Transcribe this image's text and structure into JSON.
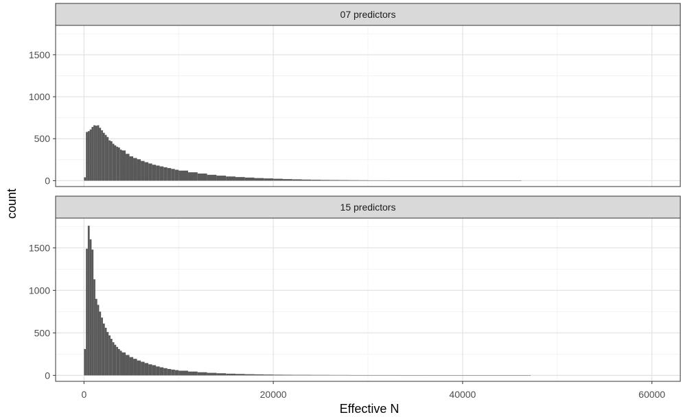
{
  "chart_data": {
    "type": "bar",
    "subtype": "histogram-facet",
    "xlabel": "Effective N",
    "ylabel": "count",
    "x_ticks": [
      0,
      20000,
      40000,
      60000
    ],
    "x_tick_labels": [
      "0",
      "20000",
      "40000",
      "60000"
    ],
    "xlim": [
      -3000,
      63000
    ],
    "grid": true,
    "panels": [
      {
        "strip_label": "07 predictors",
        "ylim": [
          -70,
          1850
        ],
        "y_ticks": [
          0,
          500,
          1000,
          1500
        ],
        "y_tick_labels": [
          "0",
          "500",
          "1000",
          "1500"
        ],
        "bin_width": 200,
        "bins": [
          [
            0,
            40
          ],
          [
            200,
            580
          ],
          [
            400,
            590
          ],
          [
            600,
            610
          ],
          [
            800,
            640
          ],
          [
            1000,
            660
          ],
          [
            1200,
            655
          ],
          [
            1400,
            660
          ],
          [
            1600,
            630
          ],
          [
            1800,
            600
          ],
          [
            2000,
            570
          ],
          [
            2200,
            545
          ],
          [
            2400,
            520
          ],
          [
            2600,
            480
          ],
          [
            2800,
            470
          ],
          [
            3000,
            440
          ],
          [
            3200,
            420
          ],
          [
            3400,
            405
          ],
          [
            3600,
            395
          ],
          [
            3800,
            370
          ],
          [
            4000,
            360
          ],
          [
            4400,
            320
          ],
          [
            4800,
            290
          ],
          [
            5200,
            270
          ],
          [
            5600,
            255
          ],
          [
            6000,
            235
          ],
          [
            6400,
            220
          ],
          [
            6800,
            205
          ],
          [
            7200,
            190
          ],
          [
            7600,
            180
          ],
          [
            8000,
            170
          ],
          [
            8400,
            160
          ],
          [
            8800,
            150
          ],
          [
            9200,
            140
          ],
          [
            9600,
            130
          ],
          [
            10000,
            120
          ],
          [
            11000,
            100
          ],
          [
            12000,
            85
          ],
          [
            13000,
            70
          ],
          [
            14000,
            60
          ],
          [
            15000,
            50
          ],
          [
            16000,
            43
          ],
          [
            17000,
            37
          ],
          [
            18000,
            31
          ],
          [
            19000,
            27
          ],
          [
            20000,
            23
          ],
          [
            21000,
            19
          ],
          [
            22000,
            16
          ],
          [
            23000,
            13
          ],
          [
            24000,
            11
          ],
          [
            25000,
            9
          ],
          [
            26000,
            8
          ],
          [
            27000,
            7
          ],
          [
            28000,
            6
          ],
          [
            29000,
            5
          ],
          [
            30000,
            4
          ],
          [
            32000,
            3
          ],
          [
            34000,
            3
          ],
          [
            36000,
            2
          ],
          [
            38000,
            2
          ],
          [
            40000,
            2
          ],
          [
            42000,
            1
          ],
          [
            44000,
            1
          ],
          [
            46000,
            1
          ]
        ]
      },
      {
        "strip_label": "15 predictors",
        "ylim": [
          -70,
          1850
        ],
        "y_ticks": [
          0,
          500,
          1000,
          1500
        ],
        "y_tick_labels": [
          "0",
          "500",
          "1000",
          "1500"
        ],
        "bin_width": 200,
        "bins": [
          [
            0,
            310
          ],
          [
            200,
            1490
          ],
          [
            400,
            1760
          ],
          [
            600,
            1600
          ],
          [
            800,
            1480
          ],
          [
            1000,
            1130
          ],
          [
            1200,
            900
          ],
          [
            1400,
            830
          ],
          [
            1600,
            750
          ],
          [
            1800,
            680
          ],
          [
            2000,
            610
          ],
          [
            2200,
            560
          ],
          [
            2400,
            510
          ],
          [
            2600,
            470
          ],
          [
            2800,
            430
          ],
          [
            3000,
            390
          ],
          [
            3200,
            360
          ],
          [
            3400,
            335
          ],
          [
            3600,
            310
          ],
          [
            3800,
            290
          ],
          [
            4000,
            270
          ],
          [
            4400,
            240
          ],
          [
            4800,
            215
          ],
          [
            5200,
            195
          ],
          [
            5600,
            175
          ],
          [
            6000,
            160
          ],
          [
            6400,
            145
          ],
          [
            6800,
            130
          ],
          [
            7200,
            120
          ],
          [
            7600,
            105
          ],
          [
            8000,
            95
          ],
          [
            8400,
            85
          ],
          [
            8800,
            75
          ],
          [
            9200,
            68
          ],
          [
            9600,
            62
          ],
          [
            10000,
            55
          ],
          [
            11000,
            45
          ],
          [
            12000,
            37
          ],
          [
            13000,
            30
          ],
          [
            14000,
            25
          ],
          [
            15000,
            20
          ],
          [
            16000,
            17
          ],
          [
            17000,
            14
          ],
          [
            18000,
            12
          ],
          [
            19000,
            10
          ],
          [
            20000,
            8
          ],
          [
            21000,
            7
          ],
          [
            22000,
            6
          ],
          [
            24000,
            5
          ],
          [
            26000,
            4
          ],
          [
            28000,
            3
          ],
          [
            30000,
            3
          ],
          [
            33000,
            2
          ],
          [
            36000,
            2
          ],
          [
            40000,
            2
          ],
          [
            44000,
            1
          ],
          [
            47000,
            1
          ]
        ]
      }
    ]
  }
}
